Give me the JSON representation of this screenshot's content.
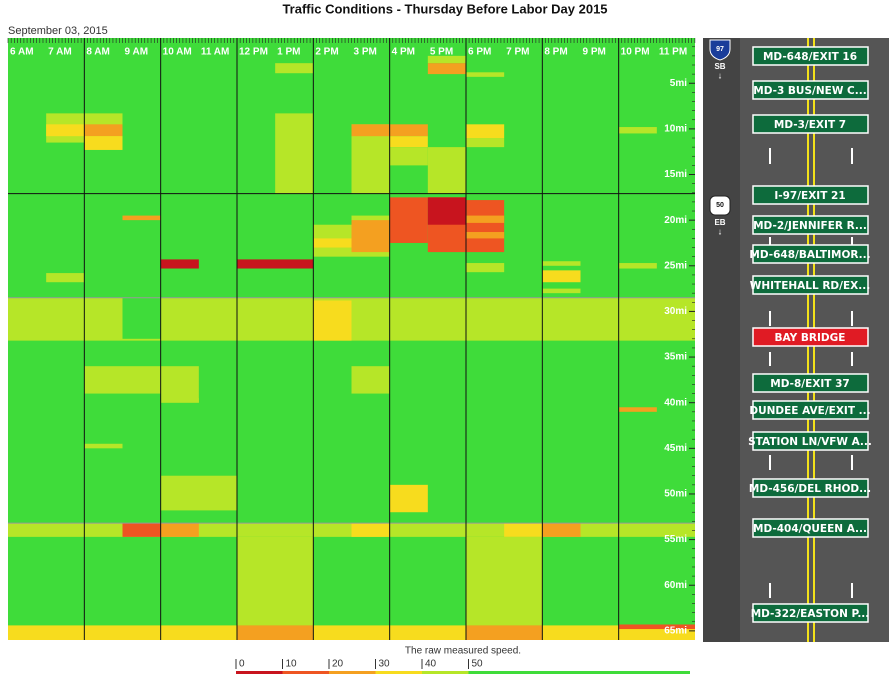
{
  "title": "Traffic Conditions - Thursday Before Labor Day 2015",
  "date": "September 03, 2015",
  "hours": {
    "labels": [
      "6 AM",
      "7 AM",
      "8 AM",
      "9 AM",
      "10 AM",
      "11 AM",
      "12 PM",
      "1 PM",
      "2 PM",
      "3 PM",
      "4 PM",
      "5 PM",
      "6 PM",
      "7 PM",
      "8 PM",
      "9 PM",
      "10 PM",
      "11 PM"
    ],
    "range": [
      6,
      24
    ]
  },
  "miles": {
    "range": [
      0.7,
      66
    ],
    "ticks": [
      {
        "value": 5,
        "label": "5mi"
      },
      {
        "value": 10,
        "label": "10mi"
      },
      {
        "value": 15,
        "label": "15mi"
      },
      {
        "value": 20,
        "label": "20mi"
      },
      {
        "value": 25,
        "label": "25mi"
      },
      {
        "value": 30,
        "label": "30mi"
      },
      {
        "value": 35,
        "label": "35mi"
      },
      {
        "value": 40,
        "label": "40mi"
      },
      {
        "value": 45,
        "label": "45mi"
      },
      {
        "value": 50,
        "label": "50mi"
      },
      {
        "value": 55,
        "label": "55mi"
      },
      {
        "value": 60,
        "label": "60mi"
      },
      {
        "value": 65,
        "label": "65mi"
      }
    ]
  },
  "base_speed": 55,
  "patches": [
    {
      "hours": [
        13,
        14
      ],
      "miles": [
        2.8,
        3.9
      ],
      "speed": 45
    },
    {
      "hours": [
        17,
        18
      ],
      "miles": [
        2.0,
        2.8
      ],
      "speed": 45
    },
    {
      "hours": [
        17,
        18
      ],
      "miles": [
        2.8,
        4.0
      ],
      "speed": 28
    },
    {
      "hours": [
        18,
        19
      ],
      "miles": [
        3.8,
        4.3
      ],
      "speed": 45
    },
    {
      "hours": [
        7,
        8
      ],
      "miles": [
        8.3,
        11.5
      ],
      "speed": 45
    },
    {
      "hours": [
        7,
        8
      ],
      "miles": [
        9.5,
        10.8
      ],
      "speed": 35
    },
    {
      "hours": [
        8,
        9
      ],
      "miles": [
        8.3,
        12.3
      ],
      "speed": 45
    },
    {
      "hours": [
        8,
        9
      ],
      "miles": [
        9.5,
        10.8
      ],
      "speed": 28
    },
    {
      "hours": [
        8,
        9
      ],
      "miles": [
        10.8,
        12.3
      ],
      "speed": 35
    },
    {
      "hours": [
        13,
        14
      ],
      "miles": [
        8.3,
        17.1
      ],
      "speed": 45
    },
    {
      "hours": [
        15,
        16
      ],
      "miles": [
        9.5,
        17.1
      ],
      "speed": 45
    },
    {
      "hours": [
        15,
        16
      ],
      "miles": [
        9.5,
        10.8
      ],
      "speed": 28
    },
    {
      "hours": [
        16,
        17
      ],
      "miles": [
        9.5,
        10.8
      ],
      "speed": 28
    },
    {
      "hours": [
        16,
        17
      ],
      "miles": [
        10.8,
        12
      ],
      "speed": 35
    },
    {
      "hours": [
        16,
        17
      ],
      "miles": [
        12,
        14
      ],
      "speed": 45
    },
    {
      "hours": [
        17,
        18
      ],
      "miles": [
        12,
        17.1
      ],
      "speed": 45
    },
    {
      "hours": [
        18,
        19
      ],
      "miles": [
        9.5,
        11
      ],
      "speed": 35
    },
    {
      "hours": [
        18,
        19
      ],
      "miles": [
        11,
        12
      ],
      "speed": 45
    },
    {
      "hours": [
        22,
        23
      ],
      "miles": [
        9.8,
        10.5
      ],
      "speed": 45
    },
    {
      "hours": [
        9,
        10
      ],
      "miles": [
        19.5,
        20
      ],
      "speed": 28
    },
    {
      "hours": [
        14,
        15
      ],
      "miles": [
        20.5,
        24
      ],
      "speed": 45
    },
    {
      "hours": [
        14,
        15
      ],
      "miles": [
        22,
        23
      ],
      "speed": 35
    },
    {
      "hours": [
        15,
        16
      ],
      "miles": [
        19.5,
        24
      ],
      "speed": 45
    },
    {
      "hours": [
        15,
        16
      ],
      "miles": [
        20,
        23.5
      ],
      "speed": 28
    },
    {
      "hours": [
        16,
        17
      ],
      "miles": [
        17.5,
        22.5
      ],
      "speed": 15
    },
    {
      "hours": [
        17,
        18
      ],
      "miles": [
        17.5,
        23.5
      ],
      "speed": 15
    },
    {
      "hours": [
        17,
        18
      ],
      "miles": [
        17.5,
        20.5
      ],
      "speed": 5
    },
    {
      "hours": [
        18,
        19
      ],
      "miles": [
        17.8,
        23.5
      ],
      "speed": 15
    },
    {
      "hours": [
        18,
        19
      ],
      "miles": [
        19.5,
        20.3
      ],
      "speed": 28
    },
    {
      "hours": [
        18,
        19
      ],
      "miles": [
        21.3,
        22
      ],
      "speed": 28
    },
    {
      "hours": [
        10,
        11
      ],
      "miles": [
        24.3,
        25.3
      ],
      "speed": 5
    },
    {
      "hours": [
        12,
        14
      ],
      "miles": [
        24.3,
        25.3
      ],
      "speed": 5
    },
    {
      "hours": [
        7,
        8
      ],
      "miles": [
        25.8,
        26.8
      ],
      "speed": 45
    },
    {
      "hours": [
        18,
        19
      ],
      "miles": [
        24.7,
        25.7
      ],
      "speed": 45
    },
    {
      "hours": [
        20,
        21
      ],
      "miles": [
        24.5,
        25
      ],
      "speed": 45
    },
    {
      "hours": [
        20,
        21
      ],
      "miles": [
        25.5,
        26.8
      ],
      "speed": 35
    },
    {
      "hours": [
        20,
        21
      ],
      "miles": [
        27.5,
        28
      ],
      "speed": 45
    },
    {
      "hours": [
        22,
        23
      ],
      "miles": [
        24.7,
        25.3
      ],
      "speed": 45
    },
    {
      "hours": [
        6,
        24
      ],
      "miles": [
        28.5,
        33.2
      ],
      "speed": 45
    },
    {
      "hours": [
        14,
        15
      ],
      "miles": [
        28.8,
        33.2
      ],
      "speed": 35
    },
    {
      "hours": [
        9,
        10
      ],
      "miles": [
        28.5,
        33
      ],
      "speed": 55
    },
    {
      "hours": [
        8,
        10
      ],
      "miles": [
        36,
        39
      ],
      "speed": 45
    },
    {
      "hours": [
        10,
        11
      ],
      "miles": [
        36,
        40
      ],
      "speed": 45
    },
    {
      "hours": [
        15,
        16
      ],
      "miles": [
        36,
        39
      ],
      "speed": 45
    },
    {
      "hours": [
        10,
        11
      ],
      "miles": [
        39.5,
        40
      ],
      "speed": 45
    },
    {
      "hours": [
        22,
        23
      ],
      "miles": [
        40.5,
        41
      ],
      "speed": 28
    },
    {
      "hours": [
        8,
        9
      ],
      "miles": [
        44.5,
        45
      ],
      "speed": 45
    },
    {
      "hours": [
        10,
        12
      ],
      "miles": [
        48,
        51.8
      ],
      "speed": 45
    },
    {
      "hours": [
        16,
        17
      ],
      "miles": [
        49,
        52
      ],
      "speed": 35
    },
    {
      "hours": [
        6,
        24
      ],
      "miles": [
        53.2,
        54.7
      ],
      "speed": 45
    },
    {
      "hours": [
        9,
        10
      ],
      "miles": [
        53.2,
        54.7
      ],
      "speed": 18
    },
    {
      "hours": [
        10,
        11
      ],
      "miles": [
        53.2,
        54.7
      ],
      "speed": 25
    },
    {
      "hours": [
        15,
        16
      ],
      "miles": [
        53.2,
        54.7
      ],
      "speed": 35
    },
    {
      "hours": [
        19,
        20
      ],
      "miles": [
        53.2,
        54.7
      ],
      "speed": 35
    },
    {
      "hours": [
        20,
        21
      ],
      "miles": [
        53.2,
        54.7
      ],
      "speed": 28
    },
    {
      "hours": [
        12,
        14
      ],
      "miles": [
        54.7,
        64.4
      ],
      "speed": 45
    },
    {
      "hours": [
        18,
        20
      ],
      "miles": [
        54.7,
        64.4
      ],
      "speed": 45
    },
    {
      "hours": [
        6,
        24
      ],
      "miles": [
        64.4,
        66
      ],
      "speed": 35
    },
    {
      "hours": [
        12,
        14
      ],
      "miles": [
        64.4,
        66
      ],
      "speed": 28
    },
    {
      "hours": [
        18,
        20
      ],
      "miles": [
        64.4,
        66
      ],
      "speed": 28
    },
    {
      "hours": [
        22,
        24
      ],
      "miles": [
        64.3,
        64.8
      ],
      "speed": 15
    }
  ],
  "scale": [
    {
      "value": 0,
      "color": "#c8141e"
    },
    {
      "value": 10,
      "color": "#ee5522"
    },
    {
      "value": 20,
      "color": "#f4a020"
    },
    {
      "value": 30,
      "color": "#f7dc1e"
    },
    {
      "value": 40,
      "color": "#b6e628"
    },
    {
      "value": 50,
      "color": "#3fdc3a"
    }
  ],
  "legend_caption": "The raw measured speed.",
  "shields": [
    {
      "number": "97",
      "direction": "SB"
    },
    {
      "number": "50",
      "direction": "EB"
    }
  ],
  "signs": [
    "MD-648/EXIT 16",
    "MD-3 BUS/NEW C...",
    "MD-3/EXIT 7",
    "I-97/EXIT 21",
    "MD-2/JENNIFER R...",
    "MD-648/BALTIMOR...",
    "WHITEHALL RD/EX...",
    "BAY BRIDGE",
    "MD-8/EXIT 37",
    "DUNDEE AVE/EXIT ...",
    "STATION LN/VFW A...",
    "MD-456/DEL RHOD...",
    "MD-404/QUEEN A...",
    "MD-322/EASTON P..."
  ]
}
